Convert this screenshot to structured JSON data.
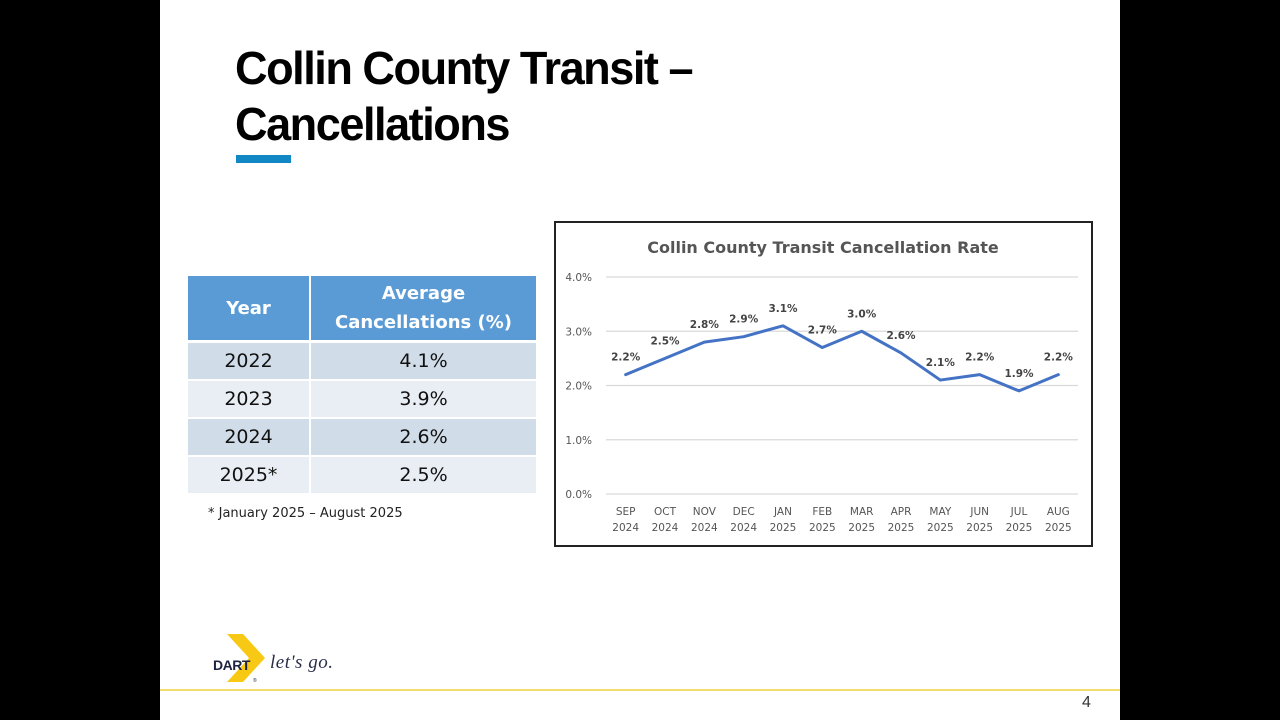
{
  "slide": {
    "title_line1": "Collin County Transit –",
    "title_line2": "Cancellations",
    "page_number": "4",
    "accent_color": "#1188c4",
    "logo": {
      "brand": "DART",
      "tagline": "let's go.",
      "brand_color": "#f7c914"
    }
  },
  "table": {
    "headers": [
      "Year",
      "Average Cancellations (%)"
    ],
    "header_lines": [
      "Average",
      "Cancellations (%)"
    ],
    "rows": [
      {
        "year": "2022",
        "avg": "4.1%"
      },
      {
        "year": "2023",
        "avg": "3.9%"
      },
      {
        "year": "2024",
        "avg": "2.6%"
      },
      {
        "year": "2025*",
        "avg": "2.5%"
      }
    ],
    "footnote": "* January 2025 – August 2025"
  },
  "chart_data": {
    "type": "line",
    "title": "Collin County Transit Cancellation Rate",
    "xlabel": "",
    "ylabel": "",
    "categories": [
      [
        "SEP",
        "2024"
      ],
      [
        "OCT",
        "2024"
      ],
      [
        "NOV",
        "2024"
      ],
      [
        "DEC",
        "2024"
      ],
      [
        "JAN",
        "2025"
      ],
      [
        "FEB",
        "2025"
      ],
      [
        "MAR",
        "2025"
      ],
      [
        "APR",
        "2025"
      ],
      [
        "MAY",
        "2025"
      ],
      [
        "JUN",
        "2025"
      ],
      [
        "JUL",
        "2025"
      ],
      [
        "AUG",
        "2025"
      ]
    ],
    "series": [
      {
        "name": "Cancellation Rate",
        "color": "#4472c4",
        "values": [
          2.2,
          2.5,
          2.8,
          2.9,
          3.1,
          2.7,
          3.0,
          2.6,
          2.1,
          2.2,
          1.9,
          2.2
        ],
        "data_labels": [
          "2.2%",
          "2.5%",
          "2.8%",
          "2.9%",
          "3.1%",
          "2.7%",
          "3.0%",
          "2.6%",
          "2.1%",
          "2.2%",
          "1.9%",
          "2.2%"
        ]
      }
    ],
    "ylim": [
      0,
      4
    ],
    "yticks": [
      0,
      1,
      2,
      3,
      4
    ],
    "ytick_labels": [
      "0.0%",
      "1.0%",
      "2.0%",
      "3.0%",
      "4.0%"
    ],
    "grid": true,
    "legend": "none"
  }
}
